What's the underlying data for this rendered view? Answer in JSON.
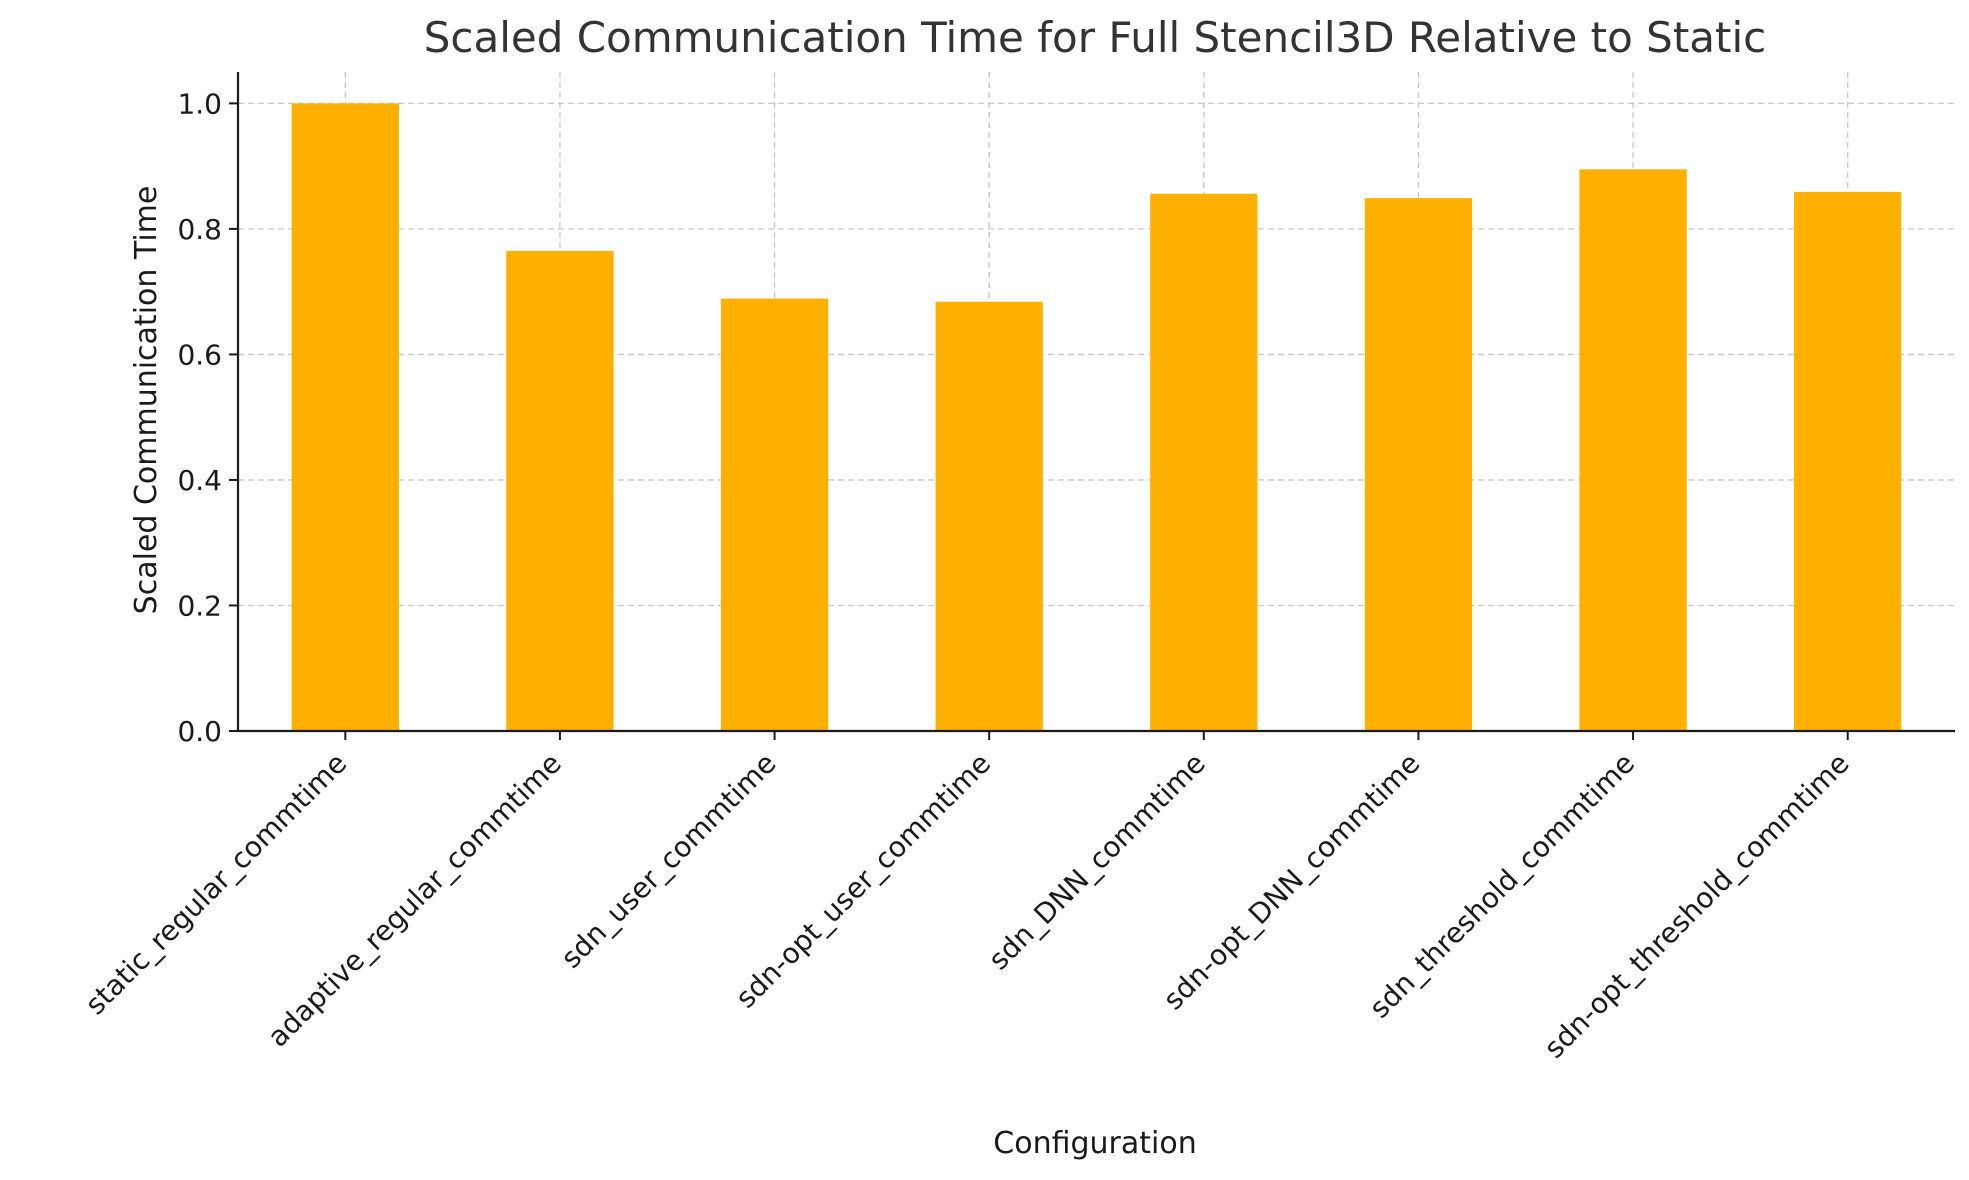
{
  "chart_data": {
    "type": "bar",
    "title": "Scaled Communication Time for Full Stencil3D Relative to Static",
    "xlabel": "Configuration",
    "ylabel": "Scaled Communication Time",
    "categories": [
      "static_regular_commtime",
      "adaptive_regular_commtime",
      "sdn_user_commtime",
      "sdn-opt_user_commtime",
      "sdn_DNN_commtime",
      "sdn-opt_DNN_commtime",
      "sdn_threshold_commtime",
      "sdn-opt_threshold_commtime"
    ],
    "values": [
      1.0,
      0.765,
      0.689,
      0.684,
      0.856,
      0.849,
      0.895,
      0.859
    ],
    "ylim": [
      0,
      1.05
    ],
    "yticks": [
      "0.0",
      "0.2",
      "0.4",
      "0.6",
      "0.8",
      "1.0"
    ],
    "bar_color": "#FFB000",
    "grid": true
  }
}
